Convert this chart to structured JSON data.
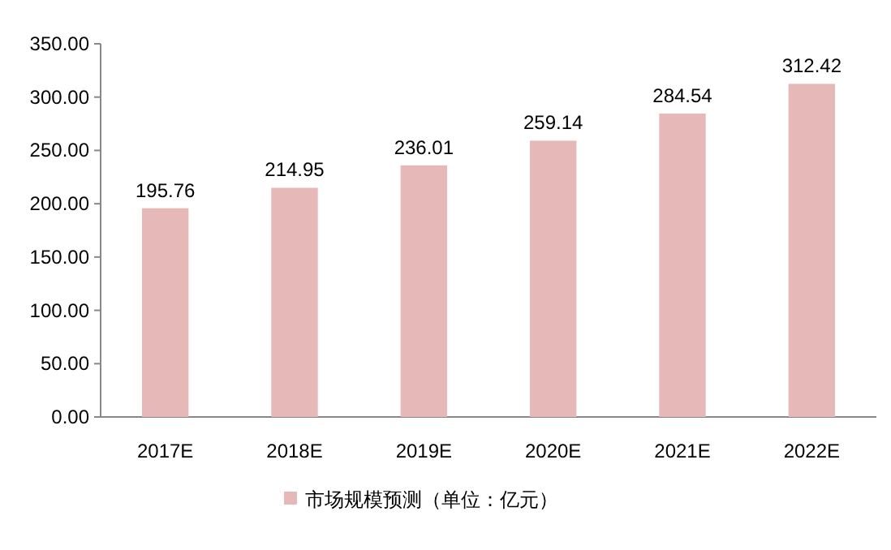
{
  "chart_data": {
    "type": "bar",
    "categories": [
      "2017E",
      "2018E",
      "2019E",
      "2020E",
      "2021E",
      "2022E"
    ],
    "series": [
      {
        "name": "市场规模预测（单位：亿元）",
        "color": "#e6b8b7",
        "values": [
          195.76,
          214.95,
          236.01,
          259.14,
          284.54,
          312.42
        ]
      }
    ],
    "ylim": [
      0,
      350
    ],
    "yticks": [
      {
        "value": 0,
        "label": "0.00"
      },
      {
        "value": 50,
        "label": "50.00"
      },
      {
        "value": 100,
        "label": "100.00"
      },
      {
        "value": 150,
        "label": "150.00"
      },
      {
        "value": 200,
        "label": "200.00"
      },
      {
        "value": 250,
        "label": "250.00"
      },
      {
        "value": 300,
        "label": "300.00"
      },
      {
        "value": 350,
        "label": "350.00"
      }
    ],
    "data_labels": true,
    "legend": "bottom"
  }
}
